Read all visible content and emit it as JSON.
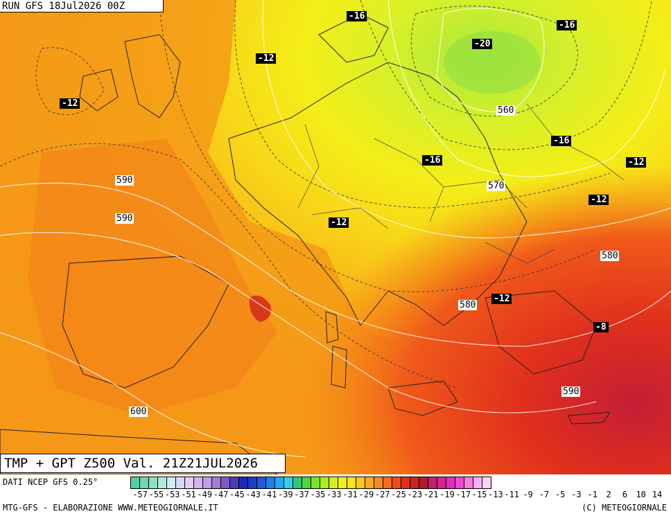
{
  "header": {
    "run": "RUN GFS 18Jul2026 00Z"
  },
  "title": "TMP + GPT Z500 Val. 21Z21JUL2026",
  "footer": {
    "source": "DATI NCEP GFS 0.25°",
    "credit": "MTG-GFS - ELABORAZIONE WWW.METEOGIORNALE.IT",
    "copyright": "(C) METEOGIORNALE"
  },
  "temperature_labels": [
    "-16",
    "-16",
    "-12",
    "-20",
    "-12",
    "-16",
    "-16",
    "-12",
    "-12",
    "-12",
    "-12",
    "-8"
  ],
  "geopotential_labels": [
    "560",
    "570",
    "590",
    "590",
    "580",
    "580",
    "590",
    "600"
  ],
  "colorbar": {
    "ticks": [
      "-57",
      "-55",
      "-53",
      "-51",
      "-49",
      "-47",
      "-45",
      "-43",
      "-41",
      "-39",
      "-37",
      "-35",
      "-33",
      "-31",
      "-29",
      "-27",
      "-25",
      "-23",
      "-21",
      "-19",
      "-17",
      "-15",
      "-13",
      "-11",
      "-9",
      "-7",
      "-5",
      "-3",
      "-1",
      "2",
      "6",
      "10",
      "14"
    ],
    "colors": [
      "#4fd0a0",
      "#6bd8b2",
      "#8ee0c4",
      "#b2ead8",
      "#cdeef0",
      "#d8d8f4",
      "#e2cdf2",
      "#d4b4ec",
      "#c29ce4",
      "#a47cd8",
      "#7a5cc8",
      "#4a3cb4",
      "#1c28b0",
      "#1c3ccc",
      "#1c5cdc",
      "#1c80ea",
      "#24a8f2",
      "#34cce8",
      "#2ec878",
      "#4cd83c",
      "#7ce428",
      "#aaee1c",
      "#d4f01c",
      "#f2f01c",
      "#fae41c",
      "#fac81c",
      "#faaa1c",
      "#f88a1c",
      "#f66a1c",
      "#ee4a1c",
      "#e0301c",
      "#cc241c",
      "#b01c2a",
      "#c2206a",
      "#d42494",
      "#e42cb8",
      "#ee48d2",
      "#f27ce0",
      "#f8b0ee",
      "#fcd0f4"
    ]
  }
}
